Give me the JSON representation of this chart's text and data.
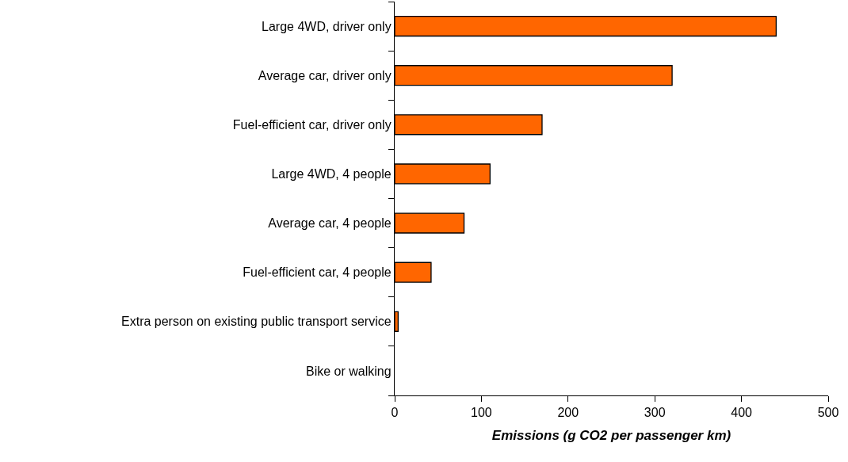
{
  "chart_data": {
    "type": "bar",
    "orientation": "horizontal",
    "categories": [
      "Large 4WD, driver only",
      "Average car, driver only",
      "Fuel-efficient car, driver only",
      "Large 4WD, 4 people",
      "Average car, 4 people",
      "Fuel-efficient car, 4 people",
      "Extra person on existing public transport service",
      "Bike or walking"
    ],
    "values": [
      440,
      320,
      170,
      110,
      80,
      42,
      4,
      0
    ],
    "color": "#ff6600",
    "xlabel": "Emissions (g CO2 per passenger km)",
    "xlim": [
      0,
      500
    ],
    "xticks": [
      0,
      100,
      200,
      300,
      400,
      500
    ],
    "grid": false,
    "legend": false
  }
}
